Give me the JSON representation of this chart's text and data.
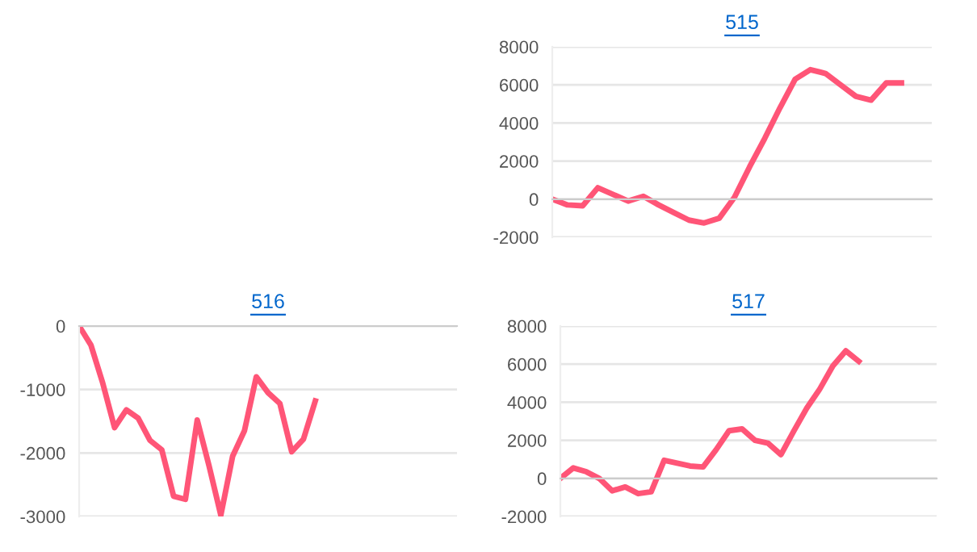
{
  "chart_data": [
    {
      "type": "line",
      "title": "515",
      "categories": [
        null,
        null,
        null,
        null,
        null,
        null,
        null,
        null,
        null,
        null,
        null,
        null,
        null,
        null,
        null,
        null,
        null,
        null,
        null,
        null,
        null,
        null,
        null,
        null,
        null,
        null
      ],
      "series": [
        {
          "color": "#ff5577",
          "values": [
            0,
            -300,
            -350,
            600,
            250,
            -100,
            150,
            -300,
            -700,
            -1100,
            -1250,
            -1000,
            100,
            1700,
            3200,
            4800,
            6300,
            6800,
            6600,
            6000,
            5400,
            5200,
            6100,
            6100,
            null,
            null
          ]
        }
      ],
      "ylim": [
        -2000,
        8000
      ],
      "yticks": [
        -2000,
        0,
        2000,
        4000,
        6000,
        8000
      ],
      "grid": "y",
      "tick_labels": "y",
      "marker": "none",
      "line_style": "solid"
    },
    {
      "type": "line",
      "title": "516",
      "categories": [
        null,
        null,
        null,
        null,
        null,
        null,
        null,
        null,
        null,
        null,
        null,
        null,
        null,
        null,
        null,
        null,
        null,
        null,
        null,
        null,
        null,
        null,
        null,
        null,
        null,
        null,
        null,
        null,
        null,
        null,
        null,
        null,
        null
      ],
      "series": [
        {
          "color": "#ff5577",
          "values": [
            0,
            -300,
            -900,
            -1600,
            -1320,
            -1450,
            -1800,
            -1950,
            -2680,
            -2730,
            -1480,
            -2200,
            -2980,
            -2050,
            -1650,
            -800,
            -1050,
            -1220,
            -1980,
            -1780,
            -1180,
            null,
            null,
            null,
            null,
            null,
            null,
            null,
            null,
            null,
            null,
            null,
            null
          ]
        }
      ],
      "ylim": [
        -3000,
        0
      ],
      "yticks": [
        -3000,
        -2000,
        -1000,
        0
      ],
      "grid": "y",
      "tick_labels": "y",
      "marker": "none",
      "line_style": "solid"
    },
    {
      "type": "line",
      "title": "517",
      "categories": [
        null,
        null,
        null,
        null,
        null,
        null,
        null,
        null,
        null,
        null,
        null,
        null,
        null,
        null,
        null,
        null,
        null,
        null,
        null,
        null,
        null,
        null,
        null,
        null,
        null,
        null,
        null,
        null,
        null,
        null
      ],
      "series": [
        {
          "color": "#ff5577",
          "values": [
            0,
            550,
            350,
            0,
            -650,
            -450,
            -800,
            -700,
            950,
            800,
            650,
            600,
            1500,
            2500,
            2600,
            2000,
            1850,
            1250,
            2500,
            3700,
            4700,
            5900,
            6700,
            6150,
            null,
            null,
            null,
            null,
            null,
            null
          ]
        }
      ],
      "ylim": [
        -2000,
        8000
      ],
      "yticks": [
        -2000,
        0,
        2000,
        4000,
        6000,
        8000
      ],
      "grid": "y",
      "tick_labels": "y",
      "marker": "none",
      "line_style": "solid"
    }
  ]
}
